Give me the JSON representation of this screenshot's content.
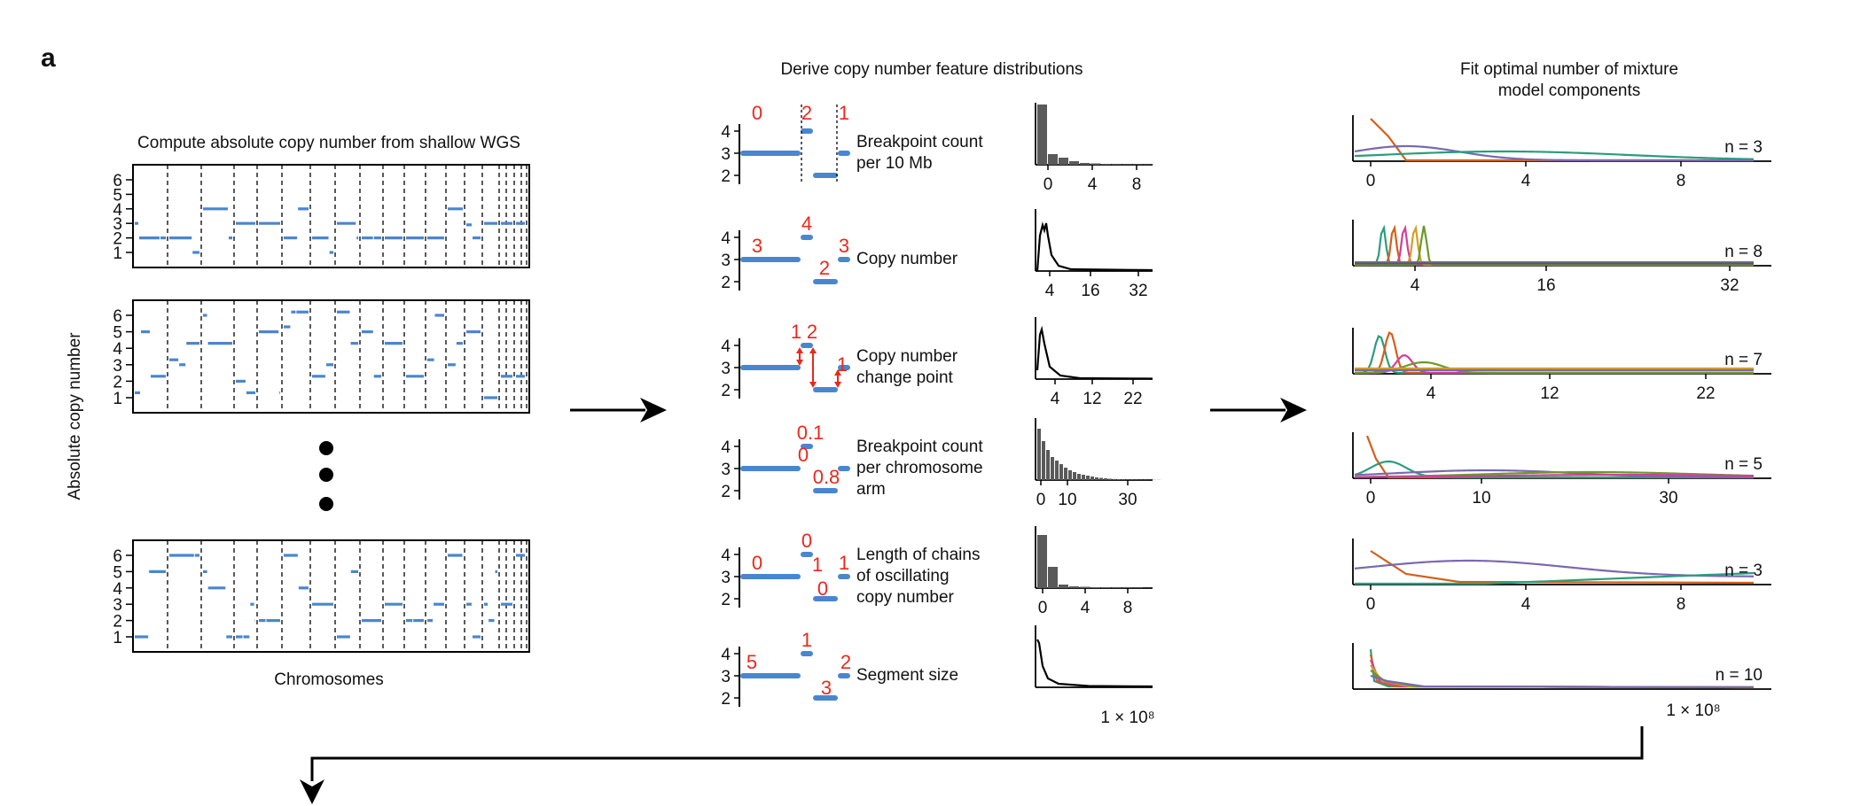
{
  "panel_label": "a",
  "step1": {
    "title": "Compute absolute copy number from shallow WGS",
    "ylabel": "Absolute copy number",
    "xlabel": "Chromosomes",
    "plots": [
      {
        "yticks": [
          "6",
          "5",
          "4",
          "3",
          "2",
          "1"
        ]
      },
      {
        "yticks": [
          "6",
          "5",
          "4",
          "3",
          "2",
          "1"
        ]
      },
      {
        "yticks": [
          "6",
          "5",
          "4",
          "3",
          "2",
          "1"
        ]
      }
    ]
  },
  "step2": {
    "title": "Derive copy number feature distributions",
    "rows": [
      {
        "feature": [
          "Breakpoint count",
          "per 10 Mb"
        ],
        "toy_yticks": [
          "4",
          "3",
          "2"
        ],
        "toy_labels": [
          "0",
          "2",
          "1"
        ],
        "hist_xticks": [
          "0",
          "4",
          "8"
        ],
        "hist_type": "bar"
      },
      {
        "feature": [
          "Copy number"
        ],
        "toy_yticks": [
          "4",
          "3",
          "2"
        ],
        "toy_labels": [
          "3",
          "4",
          "2",
          "3"
        ],
        "hist_xticks": [
          "4",
          "16",
          "32"
        ],
        "hist_type": "line"
      },
      {
        "feature": [
          "Copy number",
          "change point"
        ],
        "toy_yticks": [
          "4",
          "3",
          "2"
        ],
        "toy_labels": [
          "1",
          "2",
          "1"
        ],
        "hist_xticks": [
          "4",
          "12",
          "22"
        ],
        "hist_type": "line"
      },
      {
        "feature": [
          "Breakpoint count",
          "per chromosome",
          "arm"
        ],
        "toy_yticks": [
          "4",
          "3",
          "2"
        ],
        "toy_labels": [
          "0.1",
          "0",
          "0.8"
        ],
        "hist_xticks": [
          "0",
          "10",
          "30"
        ],
        "hist_type": "bar"
      },
      {
        "feature": [
          "Length of chains",
          "of oscillating",
          "copy number"
        ],
        "toy_yticks": [
          "4",
          "3",
          "2"
        ],
        "toy_labels": [
          "0",
          "0",
          "1",
          "1",
          "0"
        ],
        "hist_xticks": [
          "0",
          "4",
          "8"
        ],
        "hist_type": "bar"
      },
      {
        "feature": [
          "Segment size"
        ],
        "toy_yticks": [
          "4",
          "3",
          "2"
        ],
        "toy_labels": [
          "5",
          "1",
          "3",
          "2"
        ],
        "hist_xticks": [
          "1 × 10⁸"
        ],
        "hist_type": "line"
      }
    ]
  },
  "step3": {
    "title_lines": [
      "Fit optimal number of mixture",
      "model components"
    ],
    "rows": [
      {
        "n": "n = 3",
        "xticks": [
          "0",
          "4",
          "8"
        ]
      },
      {
        "n": "n = 8",
        "xticks": [
          "4",
          "16",
          "32"
        ]
      },
      {
        "n": "n = 7",
        "xticks": [
          "4",
          "12",
          "22"
        ]
      },
      {
        "n": "n = 5",
        "xticks": [
          "0",
          "10",
          "30"
        ]
      },
      {
        "n": "n = 3",
        "xticks": [
          "0",
          "4",
          "8"
        ]
      },
      {
        "n": "n = 10",
        "xticks": [
          "1 × 10⁸"
        ]
      }
    ]
  },
  "colors": {
    "segment_blue": "#4a86d0",
    "annotation_red": "#e8291c",
    "hist_gray": "#5a5a5a",
    "component_colors": [
      "#d2601a",
      "#7b68b0",
      "#2a9d7c",
      "#6b9a2a",
      "#d0409a",
      "#d4a020"
    ]
  }
}
